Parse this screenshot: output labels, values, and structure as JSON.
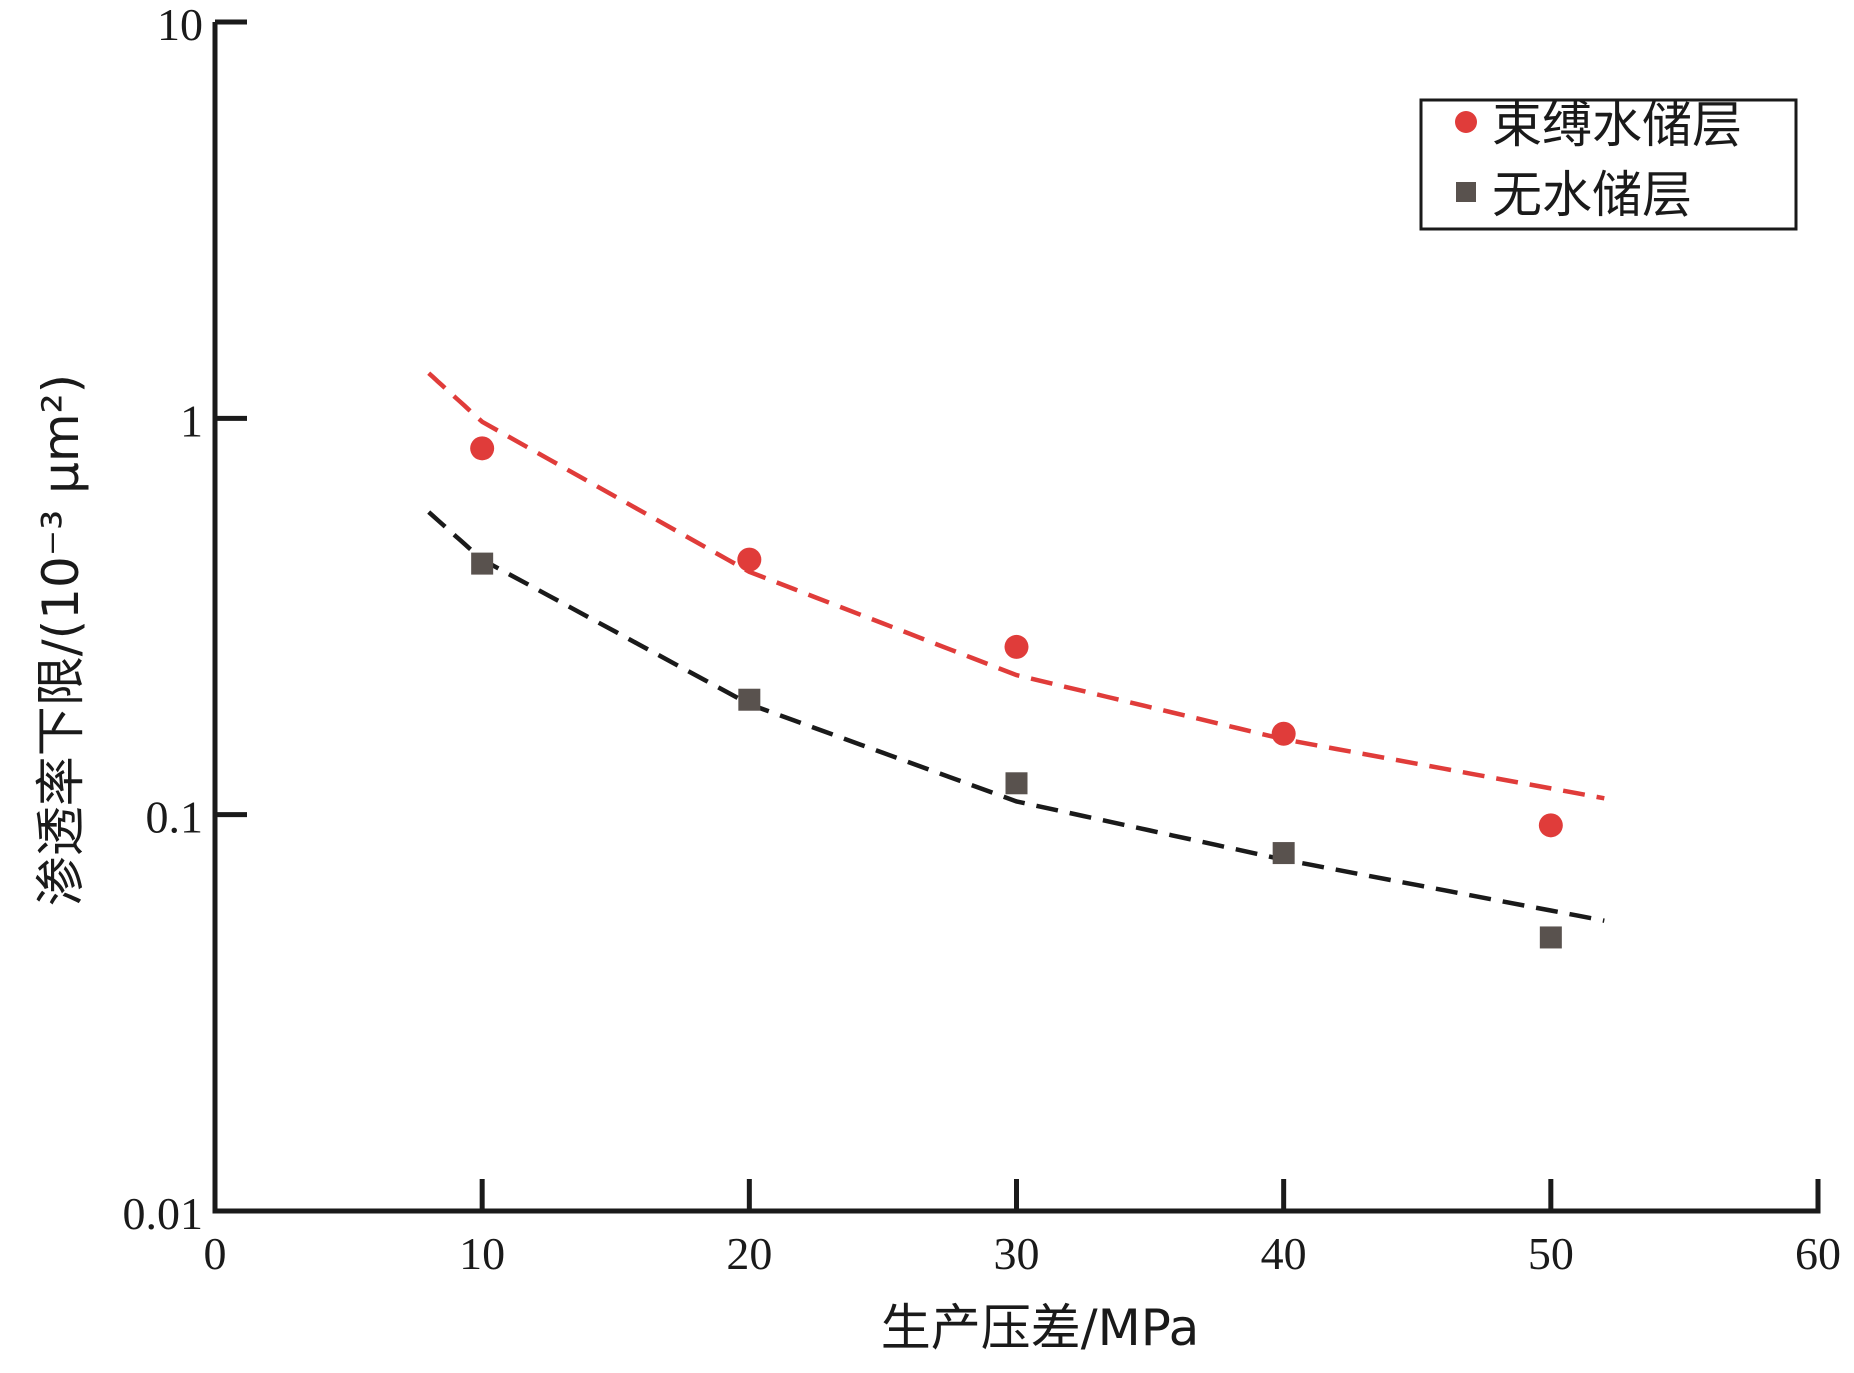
{
  "chart_data": {
    "type": "scatter",
    "title": "",
    "xlabel": "生产压差/MPa",
    "ylabel": "渗透率下限/(10⁻³ μm²)",
    "xlim": [
      0,
      60
    ],
    "ylim": [
      0.01,
      10
    ],
    "yscale": "log",
    "x_ticks": [
      "0",
      "10",
      "20",
      "30",
      "40",
      "50",
      "60"
    ],
    "y_ticks": [
      "0.01",
      "0.1",
      "1",
      "10"
    ],
    "grid": false,
    "legend_position": "top-right",
    "series": [
      {
        "name": "束缚水储层",
        "marker": "circle",
        "color": "#e03c3a",
        "x": [
          10,
          20,
          30,
          40,
          50
        ],
        "y": [
          0.84,
          0.44,
          0.265,
          0.16,
          0.094
        ],
        "trend": {
          "style": "dashed",
          "x": [
            8,
            10,
            20,
            30,
            40,
            52
          ],
          "y": [
            1.3,
            0.98,
            0.41,
            0.225,
            0.155,
            0.11
          ]
        }
      },
      {
        "name": "无水储层",
        "marker": "square",
        "color": "#59524e",
        "x": [
          10,
          20,
          30,
          40,
          50
        ],
        "y": [
          0.43,
          0.195,
          0.12,
          0.08,
          0.049
        ],
        "trend": {
          "style": "dashed",
          "color": "#1a1a1a",
          "x": [
            8,
            10,
            20,
            30,
            40,
            52
          ],
          "y": [
            0.58,
            0.44,
            0.19,
            0.108,
            0.077,
            0.054
          ]
        }
      }
    ]
  }
}
